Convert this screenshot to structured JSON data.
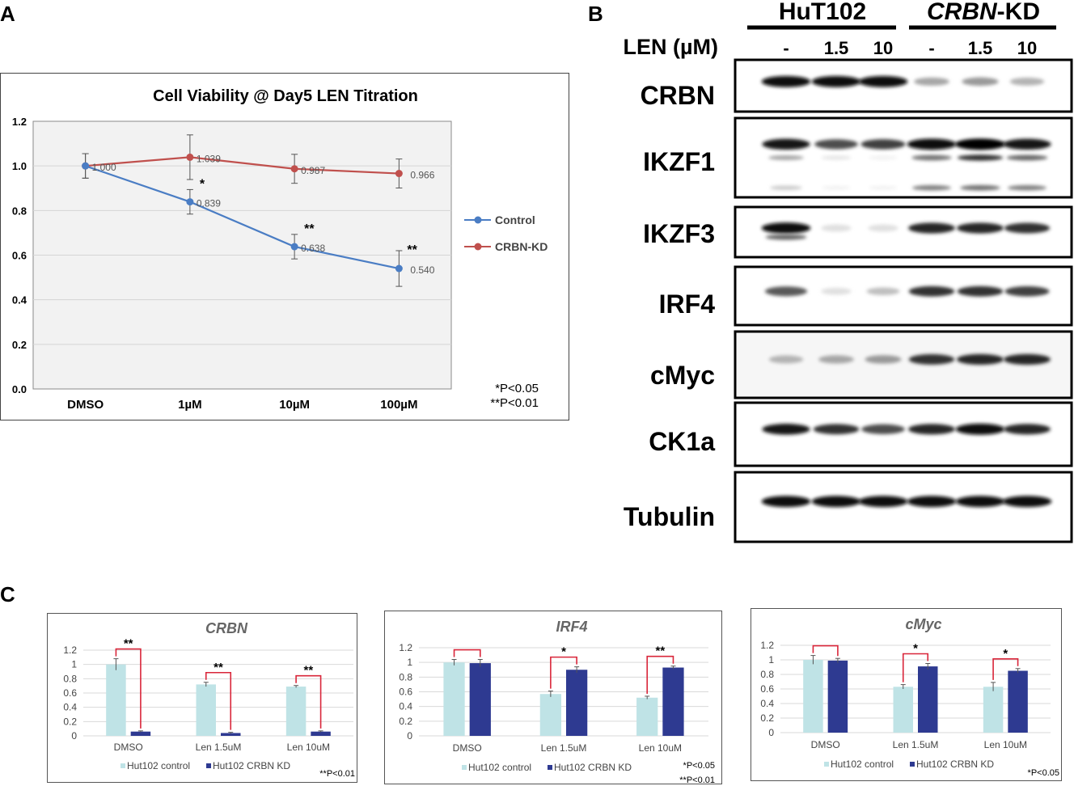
{
  "panel_labels": {
    "a": "A",
    "b": "B",
    "c": "C"
  },
  "chart_data": [
    {
      "id": "A",
      "type": "line",
      "title": "Cell Viability @ Day5 LEN Titration",
      "categories": [
        "DMSO",
        "1µM",
        "10µM",
        "100µM"
      ],
      "ylim": [
        0,
        1.2
      ],
      "yticks": [
        "0.0",
        "0.2",
        "0.4",
        "0.6",
        "0.8",
        "1.0",
        "1.2"
      ],
      "series": [
        {
          "name": "Control",
          "color": "#4A7DC4",
          "values": [
            1.0,
            0.839,
            0.638,
            0.54
          ],
          "labels": [
            "1.000",
            "0.839",
            "0.638",
            "0.540"
          ],
          "errors": [
            0.055,
            0.055,
            0.055,
            0.08
          ],
          "stars": [
            "",
            "*",
            "**",
            "**"
          ]
        },
        {
          "name": "CRBN-KD",
          "color": "#C0504D",
          "values": [
            1.0,
            1.039,
            0.987,
            0.966
          ],
          "labels": [
            "",
            "1.039",
            "0.987",
            "0.966"
          ],
          "errors": [
            0.055,
            0.1,
            0.065,
            0.065
          ],
          "stars": [
            "",
            "",
            "",
            ""
          ]
        }
      ],
      "notes": [
        "*P<0.05",
        "**P<0.01"
      ],
      "grid": true,
      "legend": "right"
    },
    {
      "id": "C1",
      "type": "bar",
      "title": "CRBN",
      "categories": [
        "DMSO",
        "Len 1.5uM",
        "Len 10uM"
      ],
      "ylim": [
        0,
        1.2
      ],
      "yticks": [
        "0",
        "0.2",
        "0.4",
        "0.6",
        "0.8",
        "1",
        "1.2"
      ],
      "series": [
        {
          "name": "Hut102 control",
          "color": "#BFE3E6",
          "values": [
            1.0,
            0.72,
            0.69
          ],
          "errors": [
            0.08,
            0.03,
            0.015
          ]
        },
        {
          "name": "Hut102 CRBN KD",
          "color": "#2E3A91",
          "values": [
            0.06,
            0.04,
            0.06
          ],
          "errors": [
            0.01,
            0.01,
            0.01
          ]
        }
      ],
      "stars": [
        "**",
        "**",
        "**"
      ],
      "notes": [
        "**P<0.01"
      ]
    },
    {
      "id": "C2",
      "type": "bar",
      "title": "IRF4",
      "categories": [
        "DMSO",
        "Len 1.5uM",
        "Len 10uM"
      ],
      "ylim": [
        0,
        1.2
      ],
      "yticks": [
        "0",
        "0.2",
        "0.4",
        "0.6",
        "0.8",
        "1",
        "1.2"
      ],
      "series": [
        {
          "name": "Hut102 control",
          "color": "#BFE3E6",
          "values": [
            1.0,
            0.57,
            0.52
          ],
          "errors": [
            0.04,
            0.04,
            0.02
          ]
        },
        {
          "name": "Hut102 CRBN KD",
          "color": "#2E3A91",
          "values": [
            0.99,
            0.9,
            0.93
          ],
          "errors": [
            0.05,
            0.04,
            0.02
          ]
        }
      ],
      "stars": [
        "",
        "*",
        "**"
      ],
      "notes": [
        "*P<0.05",
        "**P<0.01"
      ]
    },
    {
      "id": "C3",
      "type": "bar",
      "title": "cMyc",
      "categories": [
        "DMSO",
        "Len 1.5uM",
        "Len 10uM"
      ],
      "ylim": [
        0,
        1.2
      ],
      "yticks": [
        "0",
        "0.2",
        "0.4",
        "0.6",
        "0.8",
        "1",
        "1.2"
      ],
      "series": [
        {
          "name": "Hut102 control",
          "color": "#BFE3E6",
          "values": [
            1.0,
            0.63,
            0.63
          ],
          "errors": [
            0.06,
            0.03,
            0.06
          ]
        },
        {
          "name": "Hut102 CRBN KD",
          "color": "#2E3A91",
          "values": [
            0.99,
            0.91,
            0.85
          ],
          "errors": [
            0.03,
            0.04,
            0.03
          ]
        }
      ],
      "stars": [
        "",
        "*",
        "*"
      ],
      "notes": [
        "*P<0.05"
      ]
    }
  ],
  "blot": {
    "groups": [
      {
        "name": "HuT102",
        "italic": ""
      },
      {
        "name": "-KD",
        "italic": "CRBN"
      }
    ],
    "len_label": "LEN (µM)",
    "lanes": [
      "-",
      "1.5",
      "10",
      "-",
      "1.5",
      "10"
    ],
    "rows": [
      {
        "name": "CRBN",
        "bands": [
          [
            0.95
          ],
          [
            0.95
          ],
          [
            0.95
          ],
          [
            0.35
          ],
          [
            0.4
          ],
          [
            0.3
          ]
        ]
      },
      {
        "name": "IKZF1",
        "bands": [
          [
            0.9,
            0.35,
            0.2
          ],
          [
            0.7,
            0.1,
            0.05
          ],
          [
            0.75,
            0.05,
            0.05
          ],
          [
            0.95,
            0.55,
            0.5
          ],
          [
            1.0,
            0.8,
            0.55
          ],
          [
            0.9,
            0.6,
            0.5
          ]
        ]
      },
      {
        "name": "IKZF3",
        "bands": [
          [
            0.95,
            0.6
          ],
          [
            0.12
          ],
          [
            0.12
          ],
          [
            0.85
          ],
          [
            0.85
          ],
          [
            0.8
          ]
        ]
      },
      {
        "name": "IRF4",
        "bands": [
          [
            0.65
          ],
          [
            0.12
          ],
          [
            0.25
          ],
          [
            0.8
          ],
          [
            0.8
          ],
          [
            0.75
          ]
        ]
      },
      {
        "name": "cMyc",
        "bands": [
          [
            0.3
          ],
          [
            0.35
          ],
          [
            0.4
          ],
          [
            0.8
          ],
          [
            0.85
          ],
          [
            0.85
          ]
        ]
      },
      {
        "name": "CK1a",
        "bands": [
          [
            0.9
          ],
          [
            0.8
          ],
          [
            0.7
          ],
          [
            0.85
          ],
          [
            0.95
          ],
          [
            0.85
          ]
        ]
      },
      {
        "name": "Tubulin",
        "bands": [
          [
            0.95
          ],
          [
            0.95
          ],
          [
            0.95
          ],
          [
            0.95
          ],
          [
            0.95
          ],
          [
            0.95
          ]
        ]
      }
    ]
  }
}
